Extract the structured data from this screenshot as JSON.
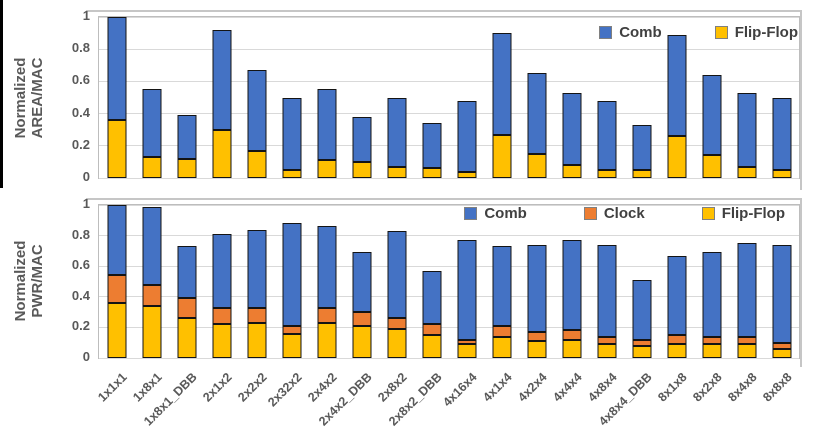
{
  "colors": {
    "comb": "#4472C4",
    "clock": "#ED7D31",
    "flipflop": "#FFC000",
    "axis_text": "#595959",
    "legend_text": "#404040",
    "gridline": "#D9D9D9",
    "plot_border": "#BDBDBD",
    "bar_border": "#141414"
  },
  "categories": [
    "1x1x1",
    "1x8x1",
    "1x8x1_DBB",
    "2x1x2",
    "2x2x2",
    "2x32x2",
    "2x4x2",
    "2x4x2_DBB",
    "2x8x2",
    "2x8x2_DBB",
    "4x16x4",
    "4x1x4",
    "4x2x4",
    "4x4x4",
    "4x8x4",
    "4x8x4_DBB",
    "8x1x8",
    "8x2x8",
    "8x4x8",
    "8x8x8"
  ],
  "chart_data": [
    {
      "type": "bar",
      "stacked": true,
      "ylabel": "Normalized AREA/MAC",
      "ylabel_lines": [
        "Normalized",
        "AREA/MAC"
      ],
      "ylim": [
        0,
        1
      ],
      "y_ticks": [
        0,
        0.2,
        0.4,
        0.6,
        0.8,
        1
      ],
      "y_tick_labels": [
        "0",
        "0.2",
        "0.4",
        "0.6",
        "0.8",
        "1"
      ],
      "grid": true,
      "legend_position": "top-right-inside",
      "categories": [
        "1x1x1",
        "1x8x1",
        "1x8x1_DBB",
        "2x1x2",
        "2x2x2",
        "2x32x2",
        "2x4x2",
        "2x4x2_DBB",
        "2x8x2",
        "2x8x2_DBB",
        "4x16x4",
        "4x1x4",
        "4x2x4",
        "4x4x4",
        "4x8x4",
        "4x8x4_DBB",
        "8x1x8",
        "8x2x8",
        "8x4x8",
        "8x8x8"
      ],
      "series": [
        {
          "name": "Comb",
          "color": "#4472C4",
          "values": [
            0.64,
            0.42,
            0.27,
            0.62,
            0.5,
            0.45,
            0.44,
            0.28,
            0.43,
            0.28,
            0.44,
            0.63,
            0.5,
            0.45,
            0.43,
            0.28,
            0.63,
            0.5,
            0.46,
            0.45
          ]
        },
        {
          "name": "Flip-Flop",
          "color": "#FFC000",
          "values": [
            0.36,
            0.13,
            0.12,
            0.3,
            0.17,
            0.05,
            0.11,
            0.1,
            0.07,
            0.06,
            0.04,
            0.27,
            0.15,
            0.08,
            0.05,
            0.05,
            0.26,
            0.14,
            0.07,
            0.05
          ]
        }
      ],
      "stack_order_bottom_to_top": [
        "Flip-Flop",
        "Comb"
      ]
    },
    {
      "type": "bar",
      "stacked": true,
      "ylabel": "Normalized PWR/MAC",
      "ylabel_lines": [
        "Normalized",
        "PWR/MAC"
      ],
      "ylim": [
        0,
        1
      ],
      "y_ticks": [
        0,
        0.2,
        0.4,
        0.6,
        0.8,
        1
      ],
      "y_tick_labels": [
        "0",
        "0.2",
        "0.4",
        "0.6",
        "0.8",
        "1"
      ],
      "grid": true,
      "legend_position": "top-right-inside",
      "categories": [
        "1x1x1",
        "1x8x1",
        "1x8x1_DBB",
        "2x1x2",
        "2x2x2",
        "2x32x2",
        "2x4x2",
        "2x4x2_DBB",
        "2x8x2",
        "2x8x2_DBB",
        "4x16x4",
        "4x1x4",
        "4x2x4",
        "4x4x4",
        "4x8x4",
        "4x8x4_DBB",
        "8x1x8",
        "8x2x8",
        "8x4x8",
        "8x8x8"
      ],
      "series": [
        {
          "name": "Comb",
          "color": "#4472C4",
          "values": [
            0.46,
            0.51,
            0.34,
            0.48,
            0.51,
            0.67,
            0.53,
            0.39,
            0.57,
            0.35,
            0.65,
            0.52,
            0.57,
            0.59,
            0.6,
            0.39,
            0.52,
            0.55,
            0.61,
            0.64
          ]
        },
        {
          "name": "Clock",
          "color": "#ED7D31",
          "values": [
            0.18,
            0.14,
            0.13,
            0.11,
            0.1,
            0.05,
            0.1,
            0.09,
            0.07,
            0.07,
            0.03,
            0.07,
            0.06,
            0.06,
            0.05,
            0.04,
            0.06,
            0.05,
            0.05,
            0.04
          ]
        },
        {
          "name": "Flip-Flop",
          "color": "#FFC000",
          "values": [
            0.36,
            0.34,
            0.26,
            0.22,
            0.23,
            0.16,
            0.23,
            0.21,
            0.19,
            0.15,
            0.09,
            0.14,
            0.11,
            0.12,
            0.09,
            0.08,
            0.09,
            0.09,
            0.09,
            0.06
          ]
        }
      ],
      "stack_order_bottom_to_top": [
        "Flip-Flop",
        "Clock",
        "Comb"
      ]
    }
  ]
}
